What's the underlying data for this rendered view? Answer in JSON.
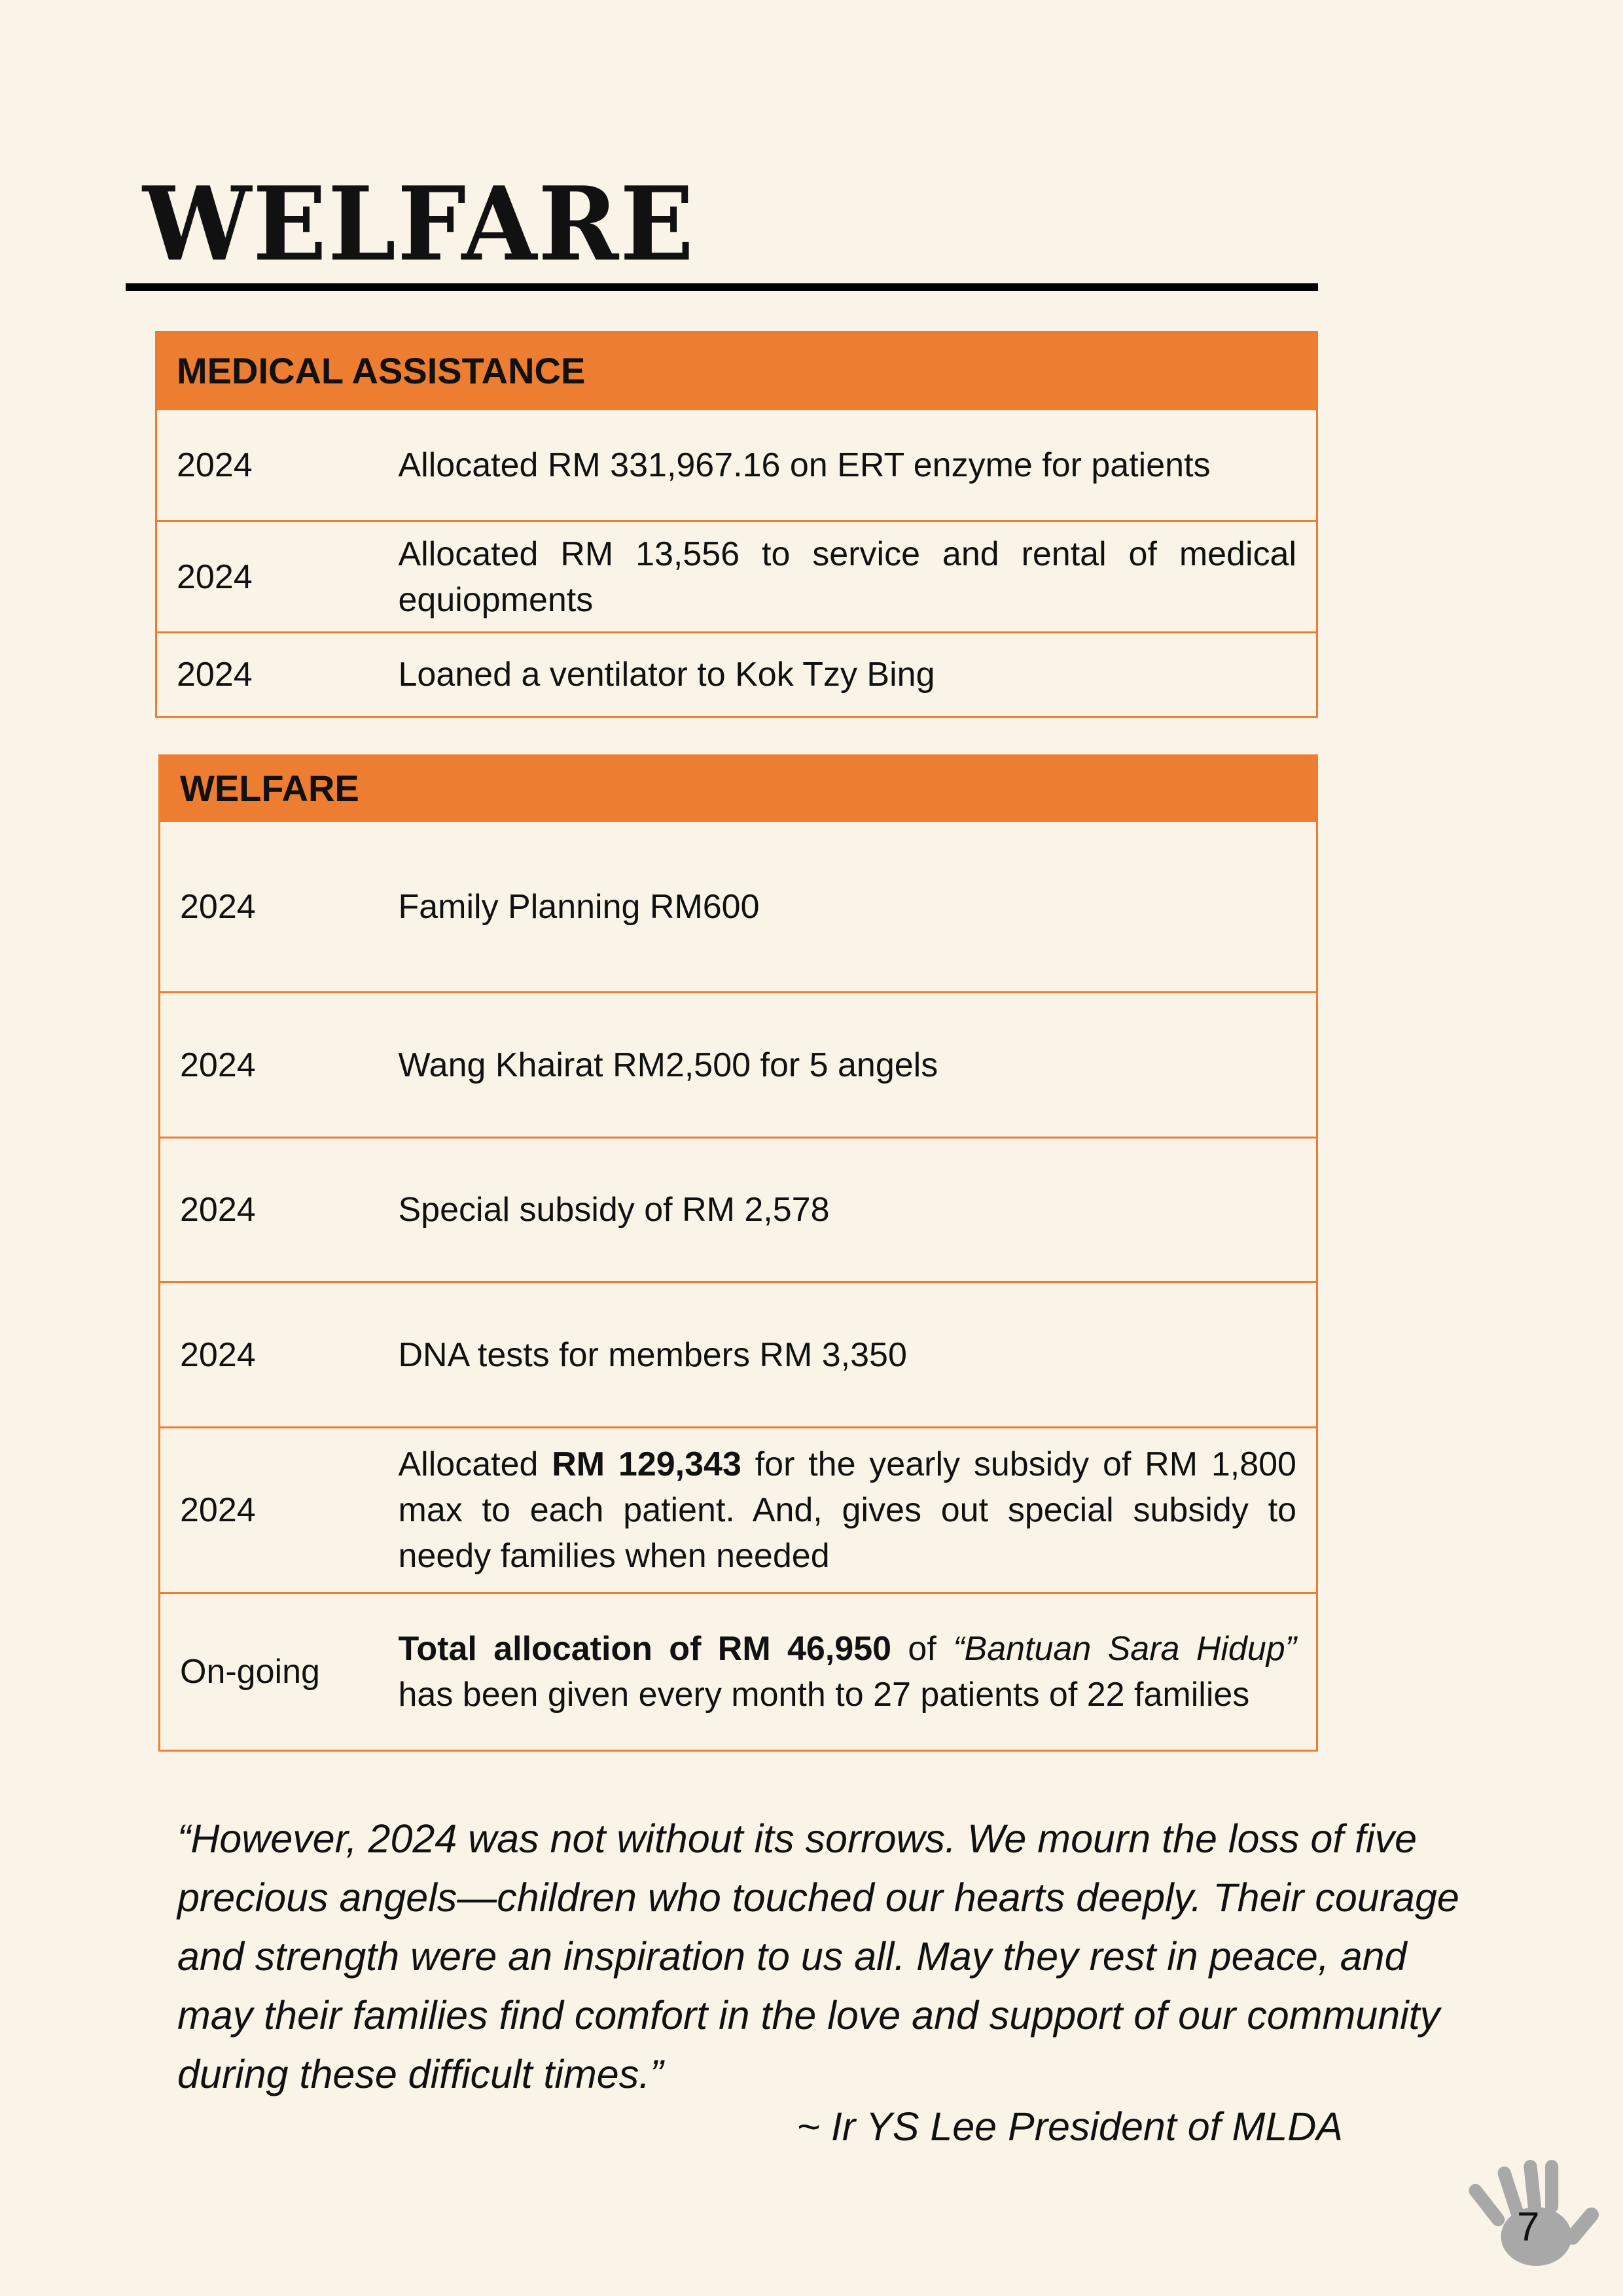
{
  "title": "WELFARE",
  "medical": {
    "header": "MEDICAL ASSISTANCE",
    "rows": [
      {
        "year": "2024",
        "desc": "Allocated RM 331,967.16 on ERT enzyme  for patients"
      },
      {
        "year": "2024",
        "desc": "Allocated RM 13,556 to service and rental of medical equiopments"
      },
      {
        "year": "2024",
        "desc": "Loaned a ventilator to Kok Tzy Bing"
      }
    ]
  },
  "welfare": {
    "header": "WELFARE",
    "rows": [
      {
        "year": "2024",
        "desc": "Family Planning RM600"
      },
      {
        "year": "2024",
        "desc": "Wang Khairat RM2,500 for  5 angels"
      },
      {
        "year": "2024",
        "desc": "Special subsidy of RM 2,578"
      },
      {
        "year": "2024",
        "desc": "DNA tests for members RM 3,350"
      },
      {
        "year": "2024",
        "desc_a": "Allocated ",
        "desc_b": "RM 129,343",
        "desc_c": " for the yearly subsidy of RM 1,800  max to each patient. And, gives out special subsidy to needy families  when needed"
      },
      {
        "year": "On-going",
        "desc_a": "Total allocation of RM 46,950",
        "desc_b": " of ",
        "desc_c": "“Bantuan Sara Hidup”",
        "desc_d": " has been given every month to 27 patients of 22 families"
      }
    ]
  },
  "quote": {
    "text": "“However, 2024 was not without its sorrows. We mourn the loss of five precious angels—children who touched our hearts deeply. Their courage and strength were an inspiration to us all. May they rest in peace, and may their families find comfort in the love and support of our community during these difficult times.”",
    "attribution": "~ Ir YS Lee President of MLDA"
  },
  "page_number": "7",
  "colors": {
    "accent": "#ED7D31",
    "background": "#FAF4E8",
    "handprint": "#A8A8A8"
  },
  "icons": {
    "page_marker": "handprint-icon"
  }
}
